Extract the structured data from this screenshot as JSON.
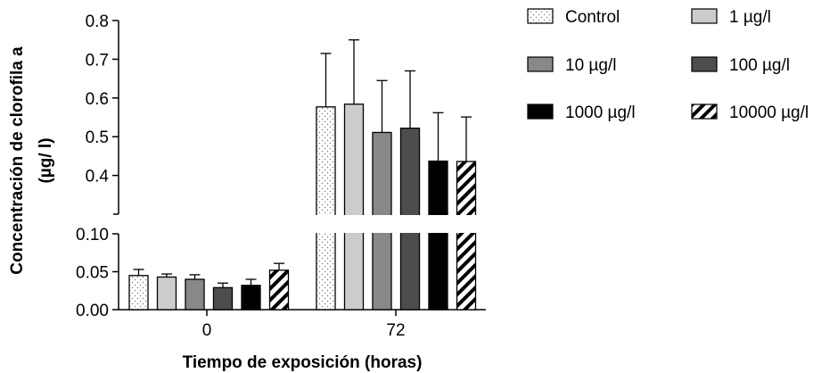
{
  "chart_data": {
    "type": "bar",
    "categories": [
      "0",
      "72"
    ],
    "xlabel": "Tiempo de exposición (horas)",
    "ylabel_line1": "Concentración de clorofila a",
    "ylabel_line2": "(µg/ l)",
    "y_axis_break": true,
    "ylim_lower": [
      0,
      0.1
    ],
    "ylim_upper": [
      0.3,
      0.8
    ],
    "yticks_lower": [
      "0.00",
      "0.05",
      "0.10"
    ],
    "yticks_upper": [
      "0.4",
      "0.5",
      "0.6",
      "0.7",
      "0.8"
    ],
    "legend_position": "top-right",
    "series": [
      {
        "name": "Control",
        "pattern": "dots",
        "values": [
          0.045,
          0.577
        ],
        "errors": [
          0.008,
          0.138
        ]
      },
      {
        "name": "1 µg/l",
        "pattern": "light-gray",
        "values": [
          0.043,
          0.584
        ],
        "errors": [
          0.004,
          0.166
        ]
      },
      {
        "name": "10  µg/l",
        "pattern": "medium-gray",
        "values": [
          0.04,
          0.511
        ],
        "errors": [
          0.006,
          0.134
        ]
      },
      {
        "name": "100  µg/l",
        "pattern": "dark-gray",
        "values": [
          0.029,
          0.522
        ],
        "errors": [
          0.006,
          0.148
        ]
      },
      {
        "name": "1000  µg/l",
        "pattern": "black",
        "values": [
          0.032,
          0.437
        ],
        "errors": [
          0.008,
          0.125
        ]
      },
      {
        "name": "10000  µg/l",
        "pattern": "diagonal-hatch",
        "values": [
          0.052,
          0.436
        ],
        "errors": [
          0.009,
          0.115
        ]
      }
    ],
    "colors": {
      "light-gray": "#cccccc",
      "medium-gray": "#888888",
      "dark-gray": "#4d4d4d",
      "black": "#000000"
    }
  }
}
